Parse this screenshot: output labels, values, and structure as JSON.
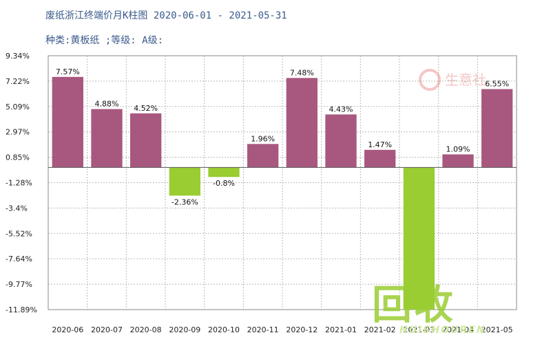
{
  "header": {
    "title": "废纸浙江终端价月K柱图 2020-06-01 - 2021-05-31",
    "subtitle": "种类:黄板纸 ;等级: A级:"
  },
  "colors": {
    "positive": "#a8587f",
    "negative": "#9acd32",
    "grid": "#b8b8b8"
  },
  "watermark": {
    "logo_text": "生意社",
    "main_text": "回收",
    "sub_text": "HUISHOUREN"
  },
  "chart_data": {
    "type": "bar",
    "title": "废纸浙江终端价月K柱图 2020-06-01 - 2021-05-31",
    "subtitle": "种类:黄板纸 ;等级: A级:",
    "categories": [
      "2020-06",
      "2020-07",
      "2020-08",
      "2020-09",
      "2020-10",
      "2020-11",
      "2020-12",
      "2021-01",
      "2021-02",
      "2021-03",
      "2021-04",
      "2021-05"
    ],
    "values": [
      7.57,
      4.88,
      4.52,
      -2.36,
      -0.8,
      1.96,
      7.48,
      4.43,
      1.47,
      -11.89,
      1.09,
      6.55
    ],
    "data_labels": [
      "7.57%",
      "4.88%",
      "4.52%",
      "-2.36%",
      "-0.8%",
      "1.96%",
      "7.48%",
      "4.43%",
      "1.47%",
      "",
      "1.09%",
      "6.55%"
    ],
    "yticks": [
      "9.34%",
      "7.22%",
      "5.09%",
      "2.97%",
      "0.85%",
      "-1.28%",
      "-3.4%",
      "-5.52%",
      "-7.64%",
      "-9.77%",
      "-11.89%"
    ],
    "ylim": [
      -11.89,
      9.34
    ],
    "xlabel": "",
    "ylabel": "",
    "grid": true,
    "legend": "none"
  }
}
